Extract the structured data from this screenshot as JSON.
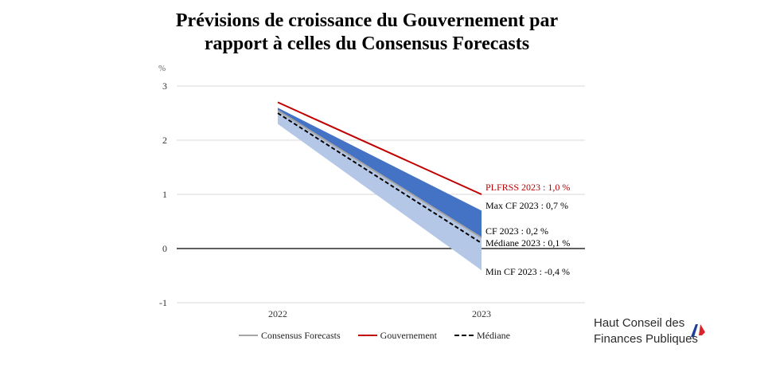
{
  "chart_data": {
    "type": "area",
    "title": "Prévisions de croissance du Gouvernement par rapport à celles du Consensus Forecasts",
    "title_lines": [
      "Prévisions de croissance du Gouvernement par",
      "rapport à celles du Consensus Forecasts"
    ],
    "ylabel": "%",
    "xlabel": "",
    "categories": [
      "2022",
      "2023"
    ],
    "ylim": [
      -1,
      3
    ],
    "yticks": [
      "3",
      "2",
      "1",
      "0",
      "-1"
    ],
    "grid": true,
    "band": {
      "max": [
        2.6,
        0.7
      ],
      "min": [
        2.3,
        -0.4
      ],
      "colors": {
        "upper": "#4472c4",
        "lower": "#b4c7e7"
      }
    },
    "series": [
      {
        "name": "Consensus Forecasts",
        "values": [
          2.55,
          0.2
        ],
        "color": "#a6a6a6",
        "style": "solid"
      },
      {
        "name": "Gouvernement",
        "values": [
          2.7,
          1.0
        ],
        "color": "#c00000",
        "style": "solid"
      },
      {
        "name": "Médiane",
        "values": [
          2.5,
          0.1
        ],
        "color": "#000000",
        "style": "dashed"
      }
    ],
    "annotations": [
      {
        "text": "PLFRSS 2023 : 1,0 %",
        "value": 1.0,
        "color": "#c00000"
      },
      {
        "text": "Max CF 2023 : 0,7 %",
        "value": 0.7,
        "color": "#000000"
      },
      {
        "text": "CF 2023 : 0,2 %",
        "value": 0.2,
        "color": "#000000"
      },
      {
        "text": "Médiane 2023 : 0,1 %",
        "value": 0.1,
        "color": "#000000"
      },
      {
        "text": "Min CF 2023 : -0,4 %",
        "value": -0.4,
        "color": "#000000"
      }
    ],
    "legend_position": "bottom"
  },
  "logo": {
    "line1": "Haut Conseil des",
    "line2": "Finances Publiques"
  },
  "colors": {
    "flag_blue": "#1f3f99",
    "flag_red": "#d9242b"
  }
}
